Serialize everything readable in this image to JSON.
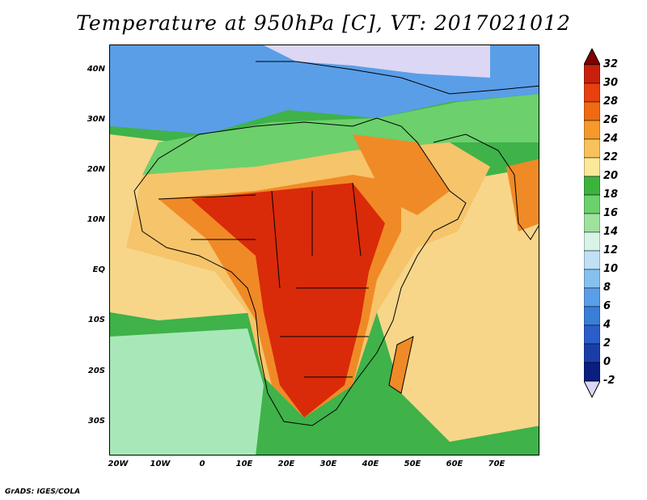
{
  "title": "Temperature at 950hPa [C], VT: 2017021012",
  "credit": "GrADS: IGES/COLA",
  "lat_labels": [
    "40N",
    "30N",
    "20N",
    "10N",
    "EQ",
    "10S",
    "20S",
    "30S"
  ],
  "lon_labels": [
    "20W",
    "10W",
    "0",
    "10E",
    "20E",
    "30E",
    "40E",
    "50E",
    "60E",
    "70E"
  ],
  "colorbar": {
    "labels": [
      "32",
      "30",
      "28",
      "26",
      "24",
      "22",
      "20",
      "18",
      "16",
      "14",
      "12",
      "10",
      "8",
      "6",
      "4",
      "2",
      "0",
      "-2"
    ],
    "colors": [
      "#7f0000",
      "#c8200a",
      "#e8400e",
      "#f06a12",
      "#f59a2a",
      "#f7c25a",
      "#fbe89b",
      "#3cb43c",
      "#6cd06c",
      "#9de39d",
      "#d8f4e8",
      "#bfe0f5",
      "#86c0ef",
      "#5a9ee8",
      "#3a7ed8",
      "#2a5ec8",
      "#1a3ea8",
      "#0a1e80",
      "#dcd7f5"
    ]
  },
  "fields": {
    "ocean_south": "#3fb24a",
    "ocean_warm": "#f7d68a",
    "cold_north": "#5a9ee8",
    "very_cold": "#dcd7f5",
    "hot_core": "#d92a0a",
    "warm": "#f08a26",
    "mild": "#f6c46a",
    "green_mid": "#6cd06c",
    "pale_green": "#a8e8b8"
  }
}
